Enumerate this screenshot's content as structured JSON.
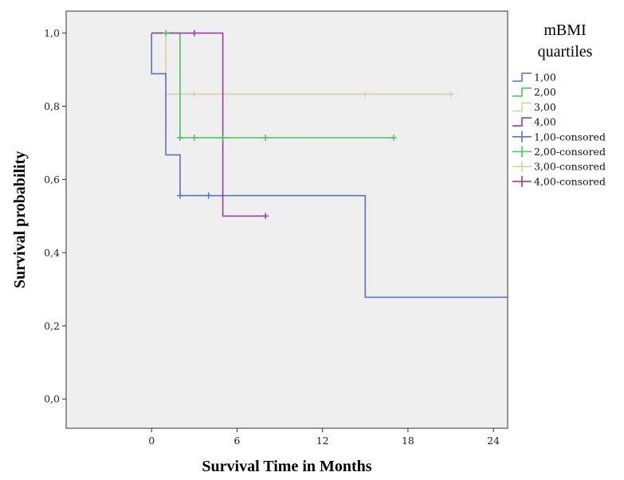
{
  "chart_data": {
    "type": "line",
    "subtype": "kaplan-meier step",
    "xlabel": "Survival Time in Months",
    "ylabel": "Survival probability",
    "xlim": [
      -6,
      25
    ],
    "ylim": [
      -0.08,
      1.06
    ],
    "xticks": [
      0,
      6,
      12,
      18,
      24
    ],
    "xtick_labels": [
      "0",
      "6",
      "12",
      "18",
      "24"
    ],
    "yticks": [
      0.0,
      0.2,
      0.4,
      0.6,
      0.8,
      1.0
    ],
    "ytick_labels": [
      "0,0",
      "0,2",
      "0,4",
      "0,6",
      "0,8",
      "1,0"
    ],
    "grid": false,
    "legend": {
      "title": "mBMI quartiles",
      "title_lines": [
        "mBMI",
        "quartiles"
      ],
      "placement": "right",
      "entries": [
        {
          "label": "1,00",
          "kind": "step",
          "color": "#5b73c4"
        },
        {
          "label": "2,00",
          "kind": "step",
          "color": "#45c45a"
        },
        {
          "label": "3,00",
          "kind": "step",
          "color": "#d9cfa5"
        },
        {
          "label": "4,00",
          "kind": "step",
          "color": "#9a3f9a"
        },
        {
          "label": "1,00-consored",
          "kind": "censor",
          "color": "#5b73c4"
        },
        {
          "label": "2,00-consored",
          "kind": "censor",
          "color": "#45c45a"
        },
        {
          "label": "3,00-consored",
          "kind": "censor",
          "color": "#d9cfa5"
        },
        {
          "label": "4,00-consored",
          "kind": "censor",
          "color": "#9a3f9a"
        }
      ]
    },
    "series": [
      {
        "name": "1,00",
        "color": "#5b73c4",
        "points": [
          [
            0,
            1.0
          ],
          [
            0,
            0.889
          ],
          [
            1,
            0.889
          ],
          [
            1,
            0.667
          ],
          [
            2,
            0.667
          ],
          [
            2,
            0.556
          ],
          [
            15,
            0.556
          ],
          [
            15,
            0.278
          ],
          [
            25,
            0.278
          ]
        ],
        "censored": [
          [
            2,
            0.556
          ],
          [
            4,
            0.556
          ]
        ]
      },
      {
        "name": "2,00",
        "color": "#45c45a",
        "points": [
          [
            0,
            1.0
          ],
          [
            2,
            1.0
          ],
          [
            2,
            0.714
          ],
          [
            17,
            0.714
          ]
        ],
        "censored": [
          [
            1,
            1.0
          ],
          [
            2,
            0.714
          ],
          [
            3,
            0.714
          ],
          [
            5,
            0.714
          ],
          [
            8,
            0.714
          ],
          [
            17,
            0.714
          ]
        ]
      },
      {
        "name": "3,00",
        "color": "#d9cfa5",
        "points": [
          [
            0,
            1.0
          ],
          [
            1,
            1.0
          ],
          [
            1,
            0.833
          ],
          [
            21,
            0.833
          ]
        ],
        "censored": [
          [
            3,
            0.833
          ],
          [
            15,
            0.833
          ],
          [
            21,
            0.833
          ]
        ]
      },
      {
        "name": "4,00",
        "color": "#9a3f9a",
        "points": [
          [
            0,
            1.0
          ],
          [
            5,
            1.0
          ],
          [
            5,
            0.5
          ],
          [
            8,
            0.5
          ]
        ],
        "censored": [
          [
            3,
            1.0
          ],
          [
            8,
            0.5
          ]
        ]
      }
    ]
  }
}
